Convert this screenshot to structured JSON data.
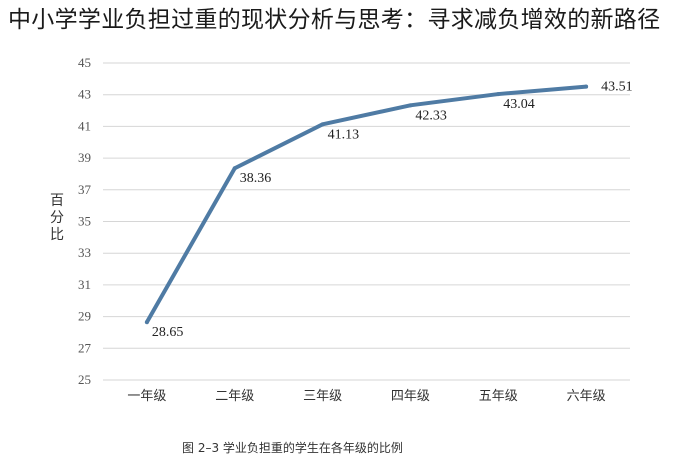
{
  "page": {
    "title": "中小学学业负担过重的现状分析与思考：寻求减负增效的新路径"
  },
  "chart_data": {
    "type": "line",
    "categories": [
      "一年级",
      "二年级",
      "三年级",
      "四年级",
      "五年级",
      "六年级"
    ],
    "values": [
      28.65,
      38.36,
      41.13,
      42.33,
      43.04,
      43.51
    ],
    "data_labels": [
      "28.65",
      "38.36",
      "41.13",
      "42.33",
      "43.04",
      "43.51"
    ],
    "ylabel": "百分比",
    "ylim": [
      25,
      45
    ],
    "yticks": [
      25,
      27,
      29,
      31,
      33,
      35,
      37,
      39,
      41,
      43,
      45
    ],
    "caption": "图 2–3    学业负担重的学生在各年级的比例",
    "grid": true,
    "line_color": "#4f7ba4",
    "grid_color": "#d6d6d6"
  }
}
